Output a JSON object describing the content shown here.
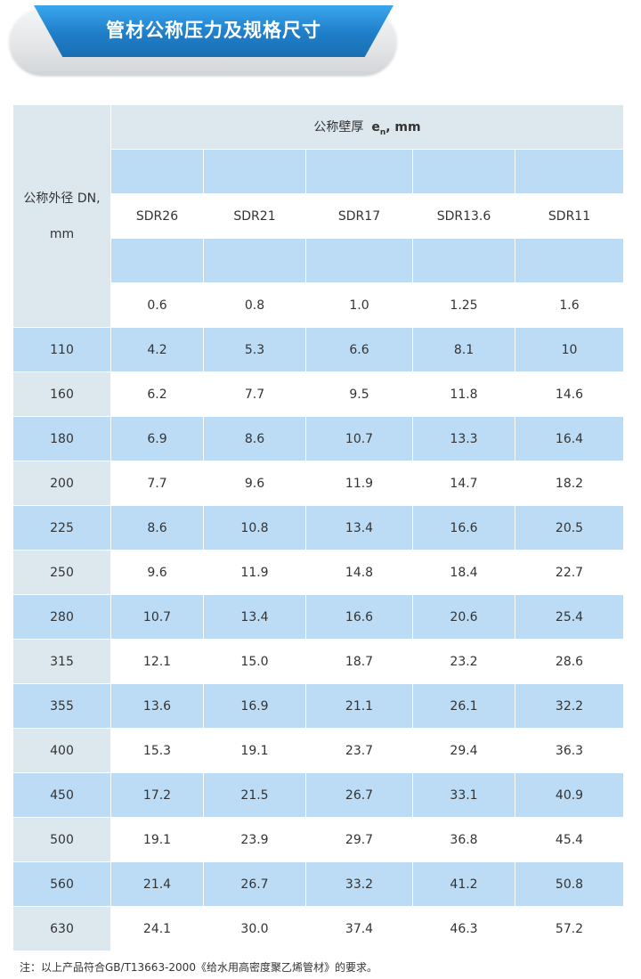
{
  "banner": {
    "title": "管材公称压力及规格尺寸"
  },
  "table": {
    "dn_header_line1": "公称外径 DN,",
    "dn_header_line2": "mm",
    "wall_header_prefix": "公称壁厚",
    "wall_header_symbol": "e",
    "wall_header_sub": "n",
    "wall_header_unit": ", mm",
    "sdr": [
      "SDR26",
      "SDR21",
      "SDR17",
      "SDR13.6",
      "SDR11"
    ],
    "pressures": [
      "0.6",
      "0.8",
      "1.0",
      "1.25",
      "1.6"
    ],
    "rows": [
      {
        "dn": "110",
        "values": [
          "4.2",
          "5.3",
          "6.6",
          "8.1",
          "10"
        ]
      },
      {
        "dn": "160",
        "values": [
          "6.2",
          "7.7",
          "9.5",
          "11.8",
          "14.6"
        ]
      },
      {
        "dn": "180",
        "values": [
          "6.9",
          "8.6",
          "10.7",
          "13.3",
          "16.4"
        ]
      },
      {
        "dn": "200",
        "values": [
          "7.7",
          "9.6",
          "11.9",
          "14.7",
          "18.2"
        ]
      },
      {
        "dn": "225",
        "values": [
          "8.6",
          "10.8",
          "13.4",
          "16.6",
          "20.5"
        ]
      },
      {
        "dn": "250",
        "values": [
          "9.6",
          "11.9",
          "14.8",
          "18.4",
          "22.7"
        ]
      },
      {
        "dn": "280",
        "values": [
          "10.7",
          "13.4",
          "16.6",
          "20.6",
          "25.4"
        ]
      },
      {
        "dn": "315",
        "values": [
          "12.1",
          "15.0",
          "18.7",
          "23.2",
          "28.6"
        ]
      },
      {
        "dn": "355",
        "values": [
          "13.6",
          "16.9",
          "21.1",
          "26.1",
          "32.2"
        ]
      },
      {
        "dn": "400",
        "values": [
          "15.3",
          "19.1",
          "23.7",
          "29.4",
          "36.3"
        ]
      },
      {
        "dn": "450",
        "values": [
          "17.2",
          "21.5",
          "26.7",
          "33.1",
          "40.9"
        ]
      },
      {
        "dn": "500",
        "values": [
          "19.1",
          "23.9",
          "29.7",
          "36.8",
          "45.4"
        ]
      },
      {
        "dn": "560",
        "values": [
          "21.4",
          "26.7",
          "33.2",
          "41.2",
          "50.8"
        ]
      },
      {
        "dn": "630",
        "values": [
          "24.1",
          "30.0",
          "37.4",
          "46.3",
          "57.2"
        ]
      }
    ]
  },
  "note": "注：以上产品符合GB/T13663-2000《给水用高密度聚乙烯管材》的要求。"
}
